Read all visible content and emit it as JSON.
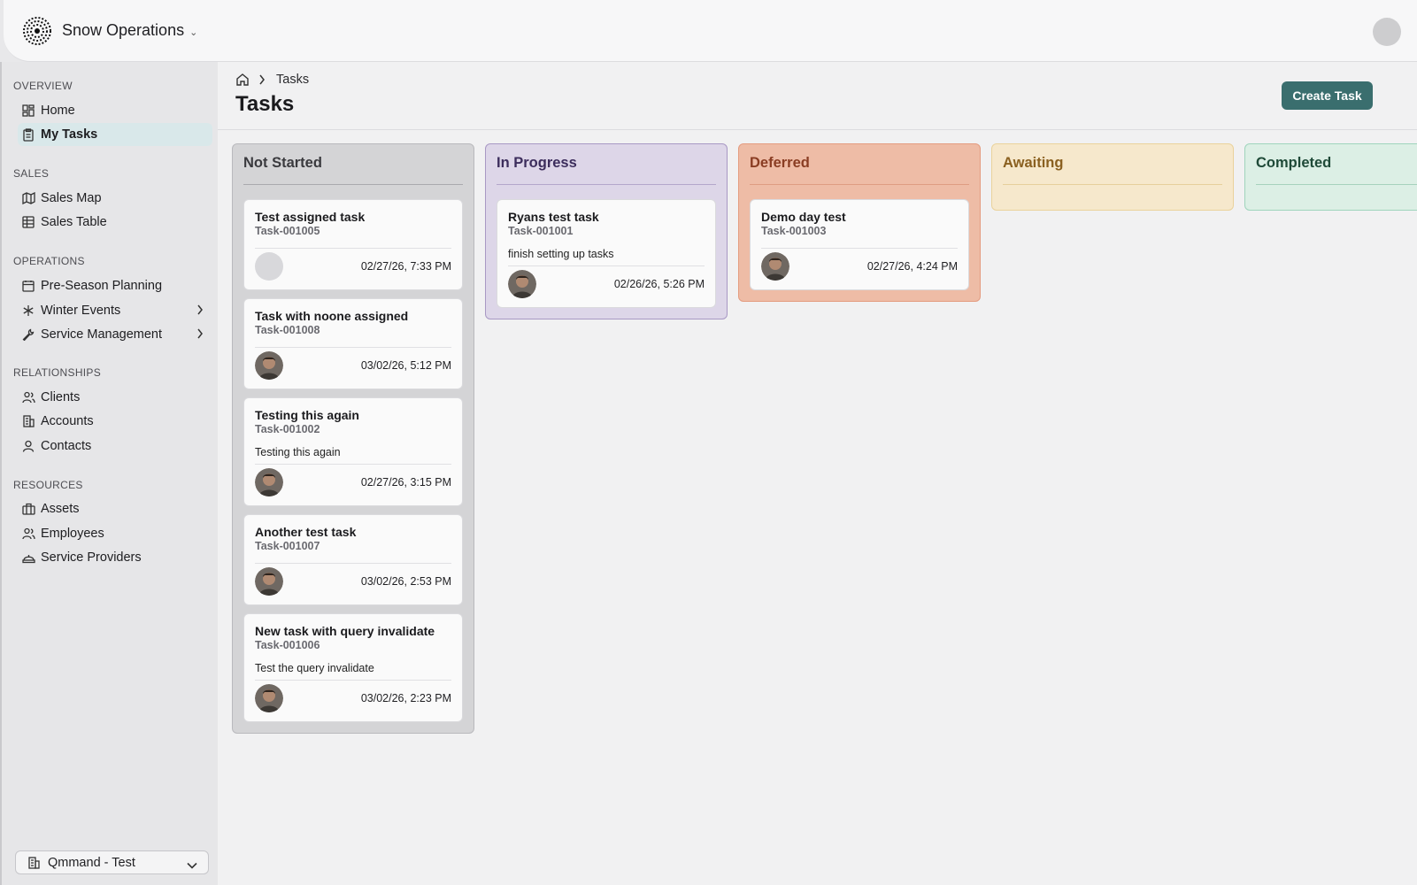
{
  "header": {
    "app_name": "Snow Operations",
    "logo_icon": "globe-dots-icon",
    "chevron": "⌄"
  },
  "sidebar": {
    "sections": [
      {
        "label": "OVERVIEW",
        "items": [
          {
            "label": "Home",
            "icon": "dashboard-icon"
          },
          {
            "label": "My Tasks",
            "icon": "clipboard-icon",
            "active": true
          }
        ]
      },
      {
        "label": "SALES",
        "items": [
          {
            "label": "Sales Map",
            "icon": "map-icon"
          },
          {
            "label": "Sales Table",
            "icon": "table-icon"
          }
        ]
      },
      {
        "label": "OPERATIONS",
        "items": [
          {
            "label": "Pre-Season Planning",
            "icon": "calendar-icon"
          },
          {
            "label": "Winter Events",
            "icon": "snowflake-icon",
            "submenu": true
          },
          {
            "label": "Service Management",
            "icon": "wrench-icon",
            "submenu": true
          }
        ]
      },
      {
        "label": "RELATIONSHIPS",
        "items": [
          {
            "label": "Clients",
            "icon": "users-icon"
          },
          {
            "label": "Accounts",
            "icon": "building-icon"
          },
          {
            "label": "Contacts",
            "icon": "user-icon"
          }
        ]
      },
      {
        "label": "RESOURCES",
        "items": [
          {
            "label": "Assets",
            "icon": "briefcase-icon"
          },
          {
            "label": "Employees",
            "icon": "users-icon"
          },
          {
            "label": "Service Providers",
            "icon": "hardhat-icon"
          }
        ]
      }
    ],
    "workspace": {
      "label": "Qmmand - Test",
      "icon": "building-icon"
    }
  },
  "page": {
    "breadcrumb": {
      "home_icon": "home-icon",
      "current": "Tasks"
    },
    "title": "Tasks",
    "create_button": "Create Task"
  },
  "board": {
    "not_started": {
      "title": "Not Started",
      "cards": [
        {
          "title": "Test assigned task",
          "id": "Task-001005",
          "desc": "",
          "date": "02/27/26, 7:33 PM",
          "assignee": false
        },
        {
          "title": "Task with noone assigned",
          "id": "Task-001008",
          "desc": "",
          "date": "03/02/26, 5:12 PM",
          "assignee": true
        },
        {
          "title": "Testing this again",
          "id": "Task-001002",
          "desc": "Testing this again",
          "date": "02/27/26, 3:15 PM",
          "assignee": true
        },
        {
          "title": "Another test task",
          "id": "Task-001007",
          "desc": "",
          "date": "03/02/26, 2:53 PM",
          "assignee": true
        },
        {
          "title": "New task with query invalidate",
          "id": "Task-001006",
          "desc": "Test the query invalidate",
          "date": "03/02/26, 2:23 PM",
          "assignee": true
        }
      ]
    },
    "in_progress": {
      "title": "In Progress",
      "cards": [
        {
          "title": "Ryans test task",
          "id": "Task-001001",
          "desc": "finish setting up tasks",
          "date": "02/26/26, 5:26 PM",
          "assignee": true
        }
      ]
    },
    "deferred": {
      "title": "Deferred",
      "cards": [
        {
          "title": "Demo day test",
          "id": "Task-001003",
          "desc": "",
          "date": "02/27/26, 4:24 PM",
          "assignee": true
        }
      ]
    },
    "awaiting": {
      "title": "Awaiting",
      "cards": []
    },
    "completed": {
      "title": "Completed",
      "cards": []
    }
  }
}
